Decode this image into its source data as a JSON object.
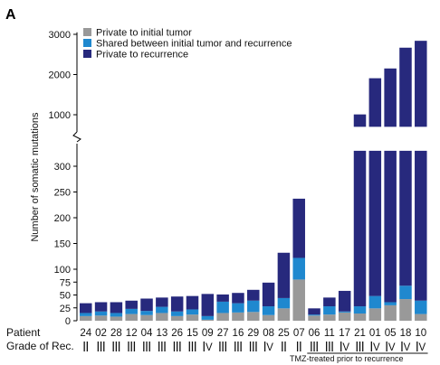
{
  "panel_label": "A",
  "colors": {
    "private_initial": "#999999",
    "shared": "#1f88cf",
    "private_recurrence": "#27297d"
  },
  "chart_data": {
    "type": "bar",
    "stacked": true,
    "broken_axis": true,
    "ylabel": "Number of somatic mutations",
    "ylim_lower": [
      0,
      330
    ],
    "ylim_upper": [
      700,
      3050
    ],
    "yticks_lower": [
      0,
      25,
      50,
      75,
      100,
      150,
      200,
      250,
      300
    ],
    "yticks_upper": [
      1000,
      2000,
      3000
    ],
    "row_labels": {
      "patient": "Patient",
      "grade": "Grade of Rec."
    },
    "categories": [
      "24",
      "02",
      "28",
      "12",
      "04",
      "13",
      "26",
      "15",
      "09",
      "27",
      "16",
      "29",
      "08",
      "25",
      "07",
      "06",
      "11",
      "17",
      "21",
      "01",
      "05",
      "18",
      "10"
    ],
    "grades": [
      "II",
      "III",
      "III",
      "III",
      "III",
      "III",
      "III",
      "III",
      "IV",
      "III",
      "III",
      "III",
      "IV",
      "II",
      "II",
      "III",
      "III",
      "IV",
      "III",
      "IV",
      "IV",
      "IV",
      "IV"
    ],
    "series": [
      {
        "name": "Private to initial tumor",
        "values": [
          9,
          10,
          8,
          13,
          11,
          15,
          9,
          12,
          2,
          15,
          16,
          17,
          11,
          24,
          80,
          10,
          12,
          16,
          14,
          24,
          30,
          42,
          13
        ]
      },
      {
        "name": "Shared between initial tumor and recurrence",
        "values": [
          6,
          8,
          7,
          10,
          8,
          12,
          9,
          10,
          7,
          22,
          18,
          22,
          17,
          20,
          42,
          2,
          16,
          2,
          14,
          24,
          6,
          26,
          26
        ]
      },
      {
        "name": "Private to recurrence",
        "values": [
          19,
          18,
          21,
          16,
          24,
          18,
          29,
          26,
          43,
          14,
          20,
          21,
          46,
          88,
          115,
          12,
          17,
          40,
          980,
          1860,
          2115,
          2600,
          2800
        ]
      }
    ],
    "legend_position": "top-left",
    "annotation": "TMZ-treated prior to recurrence",
    "annotation_categories": [
      "06",
      "11",
      "17",
      "21",
      "01",
      "05",
      "18",
      "10"
    ]
  }
}
